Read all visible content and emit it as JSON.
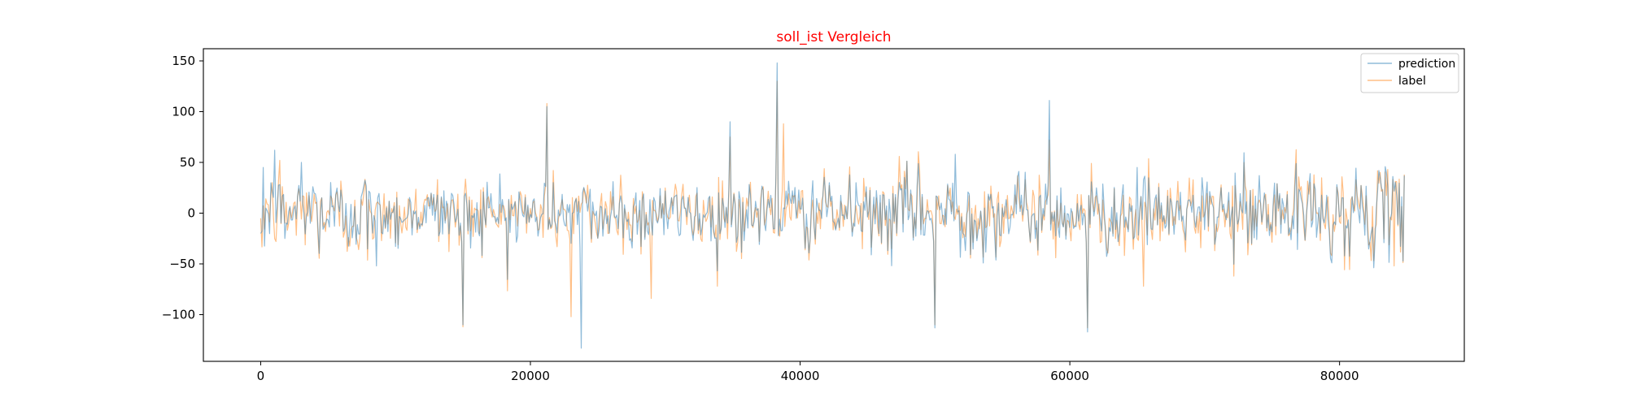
{
  "chart_data": {
    "type": "line",
    "title": "soll_ist Vergleich",
    "title_color": "#ff0000",
    "xlabel": "",
    "ylabel": "",
    "xlim": [
      -4250,
      89250
    ],
    "ylim": [
      -146,
      162
    ],
    "xticks": [
      0,
      20000,
      40000,
      60000,
      80000
    ],
    "xtick_labels": [
      "0",
      "20000",
      "40000",
      "60000",
      "80000"
    ],
    "yticks": [
      -100,
      -50,
      0,
      50,
      100,
      150
    ],
    "ytick_labels": [
      "−100",
      "−50",
      "0",
      "50",
      "100",
      "150"
    ],
    "grid": false,
    "legend_position": "top-right",
    "x_range": [
      0,
      84800
    ],
    "series": [
      {
        "name": "prediction",
        "color": "#1f77b4",
        "opacity": 0.5,
        "description": "noisy oscillating signal around 0 (mostly ±40), closely tracking label",
        "key_points": [
          {
            "x": 0,
            "y": -20
          },
          {
            "x": 200,
            "y": 45
          },
          {
            "x": 1000,
            "y": 62
          },
          {
            "x": 3000,
            "y": 50
          },
          {
            "x": 8600,
            "y": -52
          },
          {
            "x": 15000,
            "y": -110
          },
          {
            "x": 21200,
            "y": 105
          },
          {
            "x": 23800,
            "y": -133
          },
          {
            "x": 34800,
            "y": 90
          },
          {
            "x": 38300,
            "y": 148
          },
          {
            "x": 50000,
            "y": -113
          },
          {
            "x": 51500,
            "y": 58
          },
          {
            "x": 58500,
            "y": 111
          },
          {
            "x": 61300,
            "y": -117
          },
          {
            "x": 65000,
            "y": 45
          },
          {
            "x": 84800,
            "y": 37
          }
        ]
      },
      {
        "name": "label",
        "color": "#ff7f0e",
        "opacity": 0.5,
        "description": "noisy oscillating signal around 0 (mostly ±40)",
        "key_points": [
          {
            "x": 0,
            "y": -5
          },
          {
            "x": 1400,
            "y": 52
          },
          {
            "x": 15000,
            "y": -112
          },
          {
            "x": 21200,
            "y": 108
          },
          {
            "x": 23000,
            "y": -102
          },
          {
            "x": 29000,
            "y": -84
          },
          {
            "x": 34800,
            "y": 75
          },
          {
            "x": 38300,
            "y": 130
          },
          {
            "x": 38800,
            "y": 88
          },
          {
            "x": 50000,
            "y": -110
          },
          {
            "x": 58500,
            "y": 72
          },
          {
            "x": 61300,
            "y": -113
          },
          {
            "x": 65500,
            "y": -72
          },
          {
            "x": 84000,
            "y": -52
          },
          {
            "x": 84800,
            "y": 38
          }
        ]
      }
    ]
  }
}
